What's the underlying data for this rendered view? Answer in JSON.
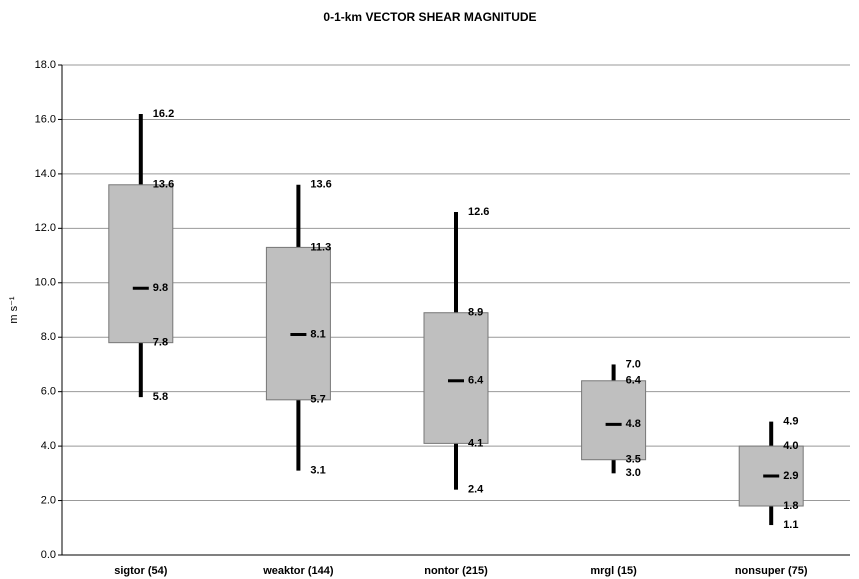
{
  "chart_data": {
    "type": "box",
    "title": "0-1-km VECTOR SHEAR MAGNITUDE",
    "ylabel": "m s⁻¹",
    "categories": [
      "sigtor (54)",
      "weaktor (144)",
      "nontor (215)",
      "mrgl (15)",
      "nonsuper (75)"
    ],
    "high": [
      16.2,
      13.6,
      12.6,
      7.0,
      4.9
    ],
    "q3": [
      13.6,
      11.3,
      8.9,
      6.4,
      4.0
    ],
    "median": [
      9.8,
      8.1,
      6.4,
      4.8,
      2.9
    ],
    "q1": [
      7.8,
      5.7,
      4.1,
      3.5,
      1.8
    ],
    "low": [
      5.8,
      3.1,
      2.4,
      3.0,
      1.1
    ],
    "value_labels": {
      "high": [
        "16.2",
        "13.6",
        "12.6",
        "7.0",
        "4.9"
      ],
      "q3": [
        "13.6",
        "11.3",
        "8.9",
        "6.4",
        "4.0"
      ],
      "median": [
        "9.8",
        "8.1",
        "6.4",
        "4.8",
        "2.9"
      ],
      "q1": [
        "7.8",
        "5.7",
        "4.1",
        "3.5",
        "1.8"
      ],
      "low": [
        "5.8",
        "3.1",
        "2.4",
        "3.0",
        "1.1"
      ]
    },
    "box_color": "#bfbfbf",
    "ylim": [
      0,
      18
    ],
    "yticks": [
      {
        "value": 0,
        "label": "0.0"
      },
      {
        "value": 2,
        "label": "2.0"
      },
      {
        "value": 4,
        "label": "4.0"
      },
      {
        "value": 6,
        "label": "6.0"
      },
      {
        "value": 8,
        "label": "8.0"
      },
      {
        "value": 10,
        "label": "10.0"
      },
      {
        "value": 12,
        "label": "12.0"
      },
      {
        "value": 14,
        "label": "14.0"
      },
      {
        "value": 16,
        "label": "16.0"
      },
      {
        "value": 18,
        "label": "18.0"
      }
    ],
    "grid": true
  }
}
